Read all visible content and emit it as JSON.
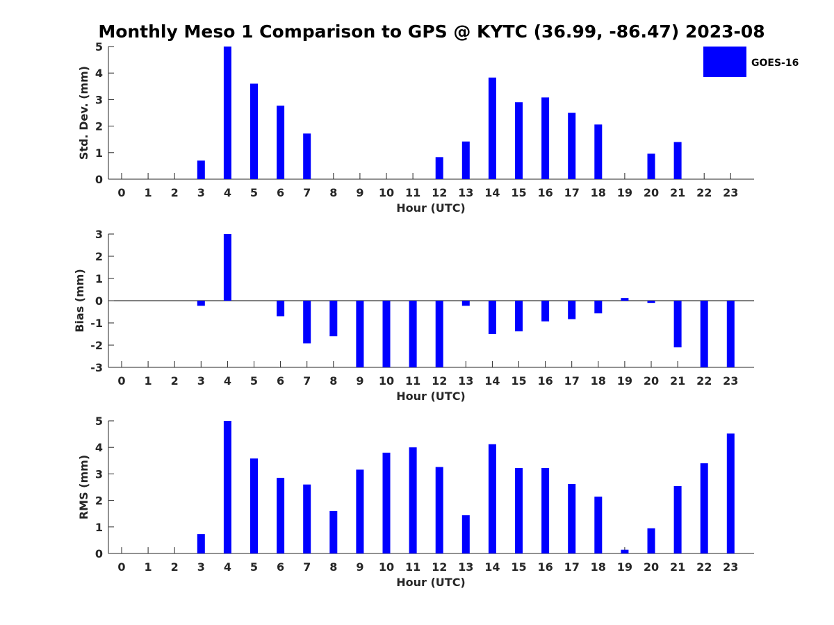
{
  "chart_data": [
    {
      "type": "bar",
      "title": "Monthly Meso 1 Comparison to GPS @ KYTC (36.99, -86.47) 2023-08",
      "xlabel": "Hour (UTC)",
      "ylabel": "Std. Dev. (mm)",
      "ylim": [
        0,
        5
      ],
      "yticks": [
        "0",
        "1",
        "2",
        "3",
        "4",
        "5"
      ],
      "categories": [
        "0",
        "1",
        "2",
        "3",
        "4",
        "5",
        "6",
        "7",
        "8",
        "9",
        "10",
        "11",
        "12",
        "13",
        "14",
        "15",
        "16",
        "17",
        "18",
        "19",
        "20",
        "21",
        "22",
        "23"
      ],
      "series": [
        {
          "name": "GOES-16",
          "color": "#0000ff",
          "values": [
            null,
            null,
            null,
            0.7,
            5.0,
            3.6,
            2.77,
            1.72,
            null,
            null,
            null,
            null,
            0.83,
            1.42,
            3.83,
            2.9,
            3.08,
            2.5,
            2.06,
            null,
            0.96,
            1.4,
            null,
            null
          ]
        }
      ],
      "legend_position": "top-right"
    },
    {
      "type": "bar",
      "xlabel": "Hour (UTC)",
      "ylabel": "Bias (mm)",
      "ylim": [
        -3,
        3
      ],
      "yticks": [
        "-3",
        "-2",
        "-1",
        "0",
        "1",
        "2",
        "3"
      ],
      "categories": [
        "0",
        "1",
        "2",
        "3",
        "4",
        "5",
        "6",
        "7",
        "8",
        "9",
        "10",
        "11",
        "12",
        "13",
        "14",
        "15",
        "16",
        "17",
        "18",
        "19",
        "20",
        "21",
        "22",
        "23"
      ],
      "series": [
        {
          "name": "GOES-16",
          "color": "#0000ff",
          "values": [
            null,
            null,
            null,
            -0.23,
            3.0,
            null,
            -0.7,
            -1.92,
            -1.6,
            -3.0,
            -3.0,
            -3.0,
            -3.0,
            -0.23,
            -1.5,
            -1.38,
            -0.93,
            -0.83,
            -0.57,
            0.12,
            -0.1,
            -2.1,
            -3.0,
            -3.0
          ]
        }
      ]
    },
    {
      "type": "bar",
      "xlabel": "Hour (UTC)",
      "ylabel": "RMS (mm)",
      "ylim": [
        0,
        5
      ],
      "yticks": [
        "0",
        "1",
        "2",
        "3",
        "4",
        "5"
      ],
      "categories": [
        "0",
        "1",
        "2",
        "3",
        "4",
        "5",
        "6",
        "7",
        "8",
        "9",
        "10",
        "11",
        "12",
        "13",
        "14",
        "15",
        "16",
        "17",
        "18",
        "19",
        "20",
        "21",
        "22",
        "23"
      ],
      "series": [
        {
          "name": "GOES-16",
          "color": "#0000ff",
          "values": [
            null,
            null,
            null,
            0.73,
            5.0,
            3.58,
            2.85,
            2.6,
            1.6,
            3.16,
            3.8,
            4.0,
            3.26,
            1.44,
            4.12,
            3.22,
            3.22,
            2.62,
            2.14,
            0.14,
            0.95,
            2.54,
            3.4,
            4.52
          ]
        }
      ]
    }
  ]
}
